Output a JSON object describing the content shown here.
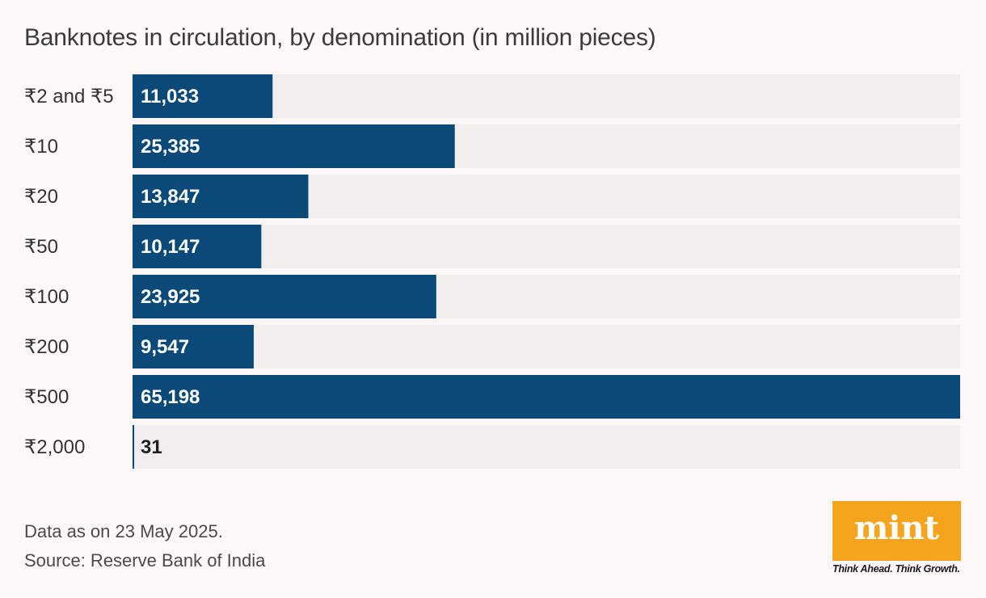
{
  "chart_data": {
    "type": "bar",
    "orientation": "horizontal",
    "title": "Banknotes in circulation, by denomination (in million pieces)",
    "categories": [
      "₹2 and ₹5",
      "₹10",
      "₹20",
      "₹50",
      "₹100",
      "₹200",
      "₹500",
      "₹2,000"
    ],
    "values": [
      11033,
      25385,
      13847,
      10147,
      23925,
      9547,
      65198,
      31
    ],
    "value_labels": [
      "11,033",
      "25,385",
      "13,847",
      "10,147",
      "23,925",
      "9,547",
      "65,198",
      "31"
    ],
    "xlim": [
      0,
      65198
    ],
    "grid": false,
    "legend": "none",
    "colors": {
      "bar": "#0b4a78",
      "track": "#f2eeed",
      "label_on_bar": "#ffffff",
      "label_off_bar": "#1f1f1f"
    }
  },
  "footer": {
    "note": "Data as on 23 May 2025.",
    "source": "Source: Reserve Bank of India"
  },
  "brand": {
    "logo_text": "mint",
    "tagline": "Think Ahead. Think Growth.",
    "color": "#f4a51d"
  }
}
